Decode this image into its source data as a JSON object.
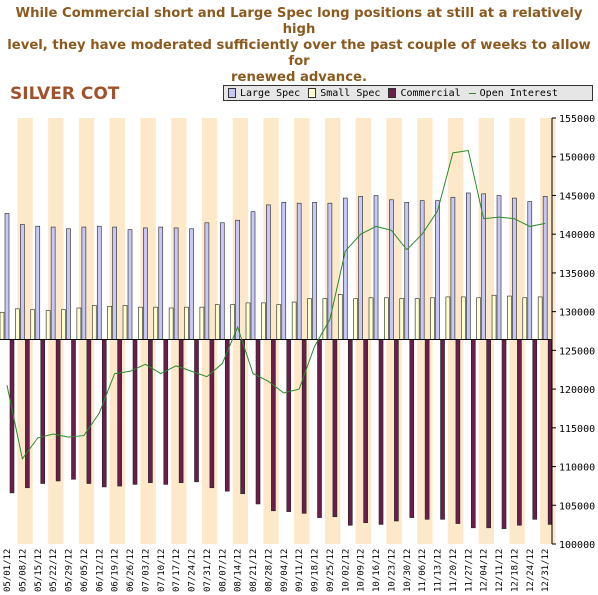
{
  "headline": {
    "line1": "While Commercial short and Large Spec long positions at still at a relatively high",
    "line2": "level, they have moderated sufficiently over the past couple of weeks to allow for",
    "line3": "renewed advance."
  },
  "chart_title": "SILVER COT",
  "legend": {
    "large_spec": "Large Spec",
    "small_spec": "Small Spec",
    "commercial": "Commercial",
    "open_interest": "Open Interest"
  },
  "colors": {
    "large_spec": "#c8c8f8",
    "small_spec": "#ffffd0",
    "commercial": "#6b1d4c",
    "open_interest": "#2a8a2a",
    "band": "#fde9c9",
    "headline": "#8b5a1e",
    "title": "#a0522d"
  },
  "chart_data": {
    "type": "bar",
    "categories": [
      "05/01/12",
      "05/08/12",
      "05/15/12",
      "05/22/12",
      "05/29/12",
      "06/05/12",
      "06/12/12",
      "06/19/12",
      "06/26/12",
      "07/03/12",
      "07/10/12",
      "07/17/12",
      "07/24/12",
      "07/31/12",
      "08/07/12",
      "08/14/12",
      "08/21/12",
      "08/28/12",
      "09/04/12",
      "09/11/12",
      "09/18/12",
      "09/25/12",
      "10/02/12",
      "10/09/12",
      "10/16/12",
      "10/23/12",
      "10/30/12",
      "11/06/12",
      "11/13/12",
      "11/20/12",
      "11/27/12",
      "12/04/12",
      "12/11/12",
      "12/18/12",
      "12/24/12",
      "12/31/12"
    ],
    "x_tick_labels": [
      "05/01/12",
      "05/08/12",
      "05/15/12",
      "05/22/12",
      "05/29/12",
      "06/05/12",
      "06/12/12",
      "06/19/12",
      "06/26/12",
      "07/03/12",
      "07/10/12",
      "07/17/12",
      "07/24/12",
      "07/31/12",
      "08/07/12",
      "08/14/12",
      "08/21/12",
      "08/28/12",
      "09/04/12",
      "09/11/12",
      "09/18/12",
      "09/25/12",
      "10/02/12",
      "10/09/12",
      "10/16/12",
      "10/23/12",
      "10/30/12",
      "11/06/12",
      "11/13/12",
      "11/20/12",
      "11/27/12",
      "12/04/12",
      "12/11/12",
      "12/18/12",
      "12/24/12",
      "12/31/12"
    ],
    "series": [
      {
        "name": "Large Spec",
        "values": [
          14800,
          13500,
          13300,
          13200,
          13000,
          13200,
          13300,
          13200,
          12900,
          13100,
          13200,
          13100,
          13000,
          13700,
          13700,
          14000,
          15000,
          15800,
          16100,
          16000,
          16100,
          16000,
          16600,
          16800,
          16900,
          16400,
          16100,
          16300,
          16300,
          16700,
          17200,
          17100,
          16900,
          16600,
          16200,
          16800
        ]
      },
      {
        "name": "Small Spec",
        "values": [
          3200,
          3600,
          3500,
          3400,
          3500,
          3700,
          4000,
          3900,
          4000,
          3800,
          3800,
          3700,
          3800,
          3800,
          4100,
          4100,
          4300,
          4300,
          4100,
          4400,
          4800,
          4800,
          5300,
          4800,
          4900,
          4900,
          4800,
          4800,
          4900,
          5000,
          5000,
          4900,
          5200,
          5100,
          4900,
          5000
        ]
      },
      {
        "name": "Commercial",
        "values": [
          -18000,
          -17400,
          -16900,
          -16600,
          -16400,
          -16900,
          -17300,
          -17200,
          -17000,
          -16800,
          -17000,
          -16800,
          -16700,
          -17400,
          -17800,
          -18100,
          -19300,
          -20100,
          -20200,
          -20400,
          -20900,
          -20800,
          -21800,
          -21500,
          -21700,
          -21300,
          -20900,
          -21100,
          -21100,
          -21600,
          -22100,
          -22100,
          -22200,
          -21800,
          -21100,
          -21700
        ]
      },
      {
        "name": "Open Interest",
        "values": [
          120500,
          111000,
          113700,
          114200,
          113800,
          114000,
          116900,
          122000,
          122300,
          123200,
          122000,
          123000,
          122300,
          121600,
          123300,
          128000,
          122000,
          121000,
          119500,
          120000,
          125500,
          129000,
          137800,
          140000,
          141000,
          140500,
          138000,
          140000,
          143000,
          150500,
          150800,
          142000,
          142200,
          142000,
          141000,
          141400
        ]
      }
    ],
    "y_left_range": [
      -24000,
      26000
    ],
    "y_right_range": [
      100000,
      155000
    ],
    "y_right_ticks": [
      "155000",
      "150000",
      "145000",
      "140000",
      "135000",
      "130000",
      "125000",
      "120000",
      "115000",
      "110000",
      "105000",
      "100000"
    ],
    "legend_position": "top-right",
    "grid": false
  }
}
